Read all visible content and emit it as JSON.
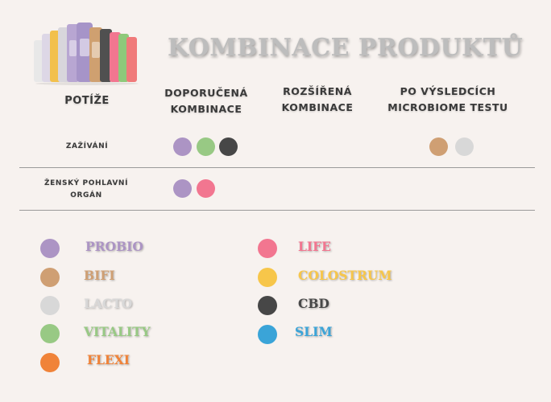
{
  "header": {
    "title": "KOMBINACE PRODUKTŮ",
    "image_icon": "product-bottles-icon"
  },
  "columns": {
    "potize": "POTÍŽE",
    "doporucena": "DOPORUČENÁ KOMBINACE",
    "rozsirena": "ROZŠÍŘENÁ KOMBINACE",
    "vysledky": "PO VÝSLEDCÍCH MICROBIOME TESTU"
  },
  "rows": [
    {
      "label": "ZAŽÍVÁNÍ",
      "doporucena": [
        "PROBIO",
        "VITALITY",
        "CBD"
      ],
      "rozsirena": [],
      "vysledky": [
        "BIFI",
        "LACTO"
      ]
    },
    {
      "label": "ŽENSKÝ POHLAVNÍ ORGÁN",
      "doporucena": [
        "PROBIO",
        "LIFE"
      ],
      "rozsirena": [],
      "vysledky": []
    }
  ],
  "legend": [
    {
      "name": "PROBIO",
      "color": "#ac94c4"
    },
    {
      "name": "BIFI",
      "color": "#cf9f73"
    },
    {
      "name": "LACTO",
      "color": "#d8d8d8"
    },
    {
      "name": "VITALITY",
      "color": "#98c984"
    },
    {
      "name": "FLEXI",
      "color": "#f08339"
    },
    {
      "name": "LIFE",
      "color": "#f27690"
    },
    {
      "name": "COLOSTRUM",
      "color": "#f7c64a"
    },
    {
      "name": "CBD",
      "color": "#474747"
    },
    {
      "name": "SLIM",
      "color": "#3aa4d8"
    }
  ]
}
